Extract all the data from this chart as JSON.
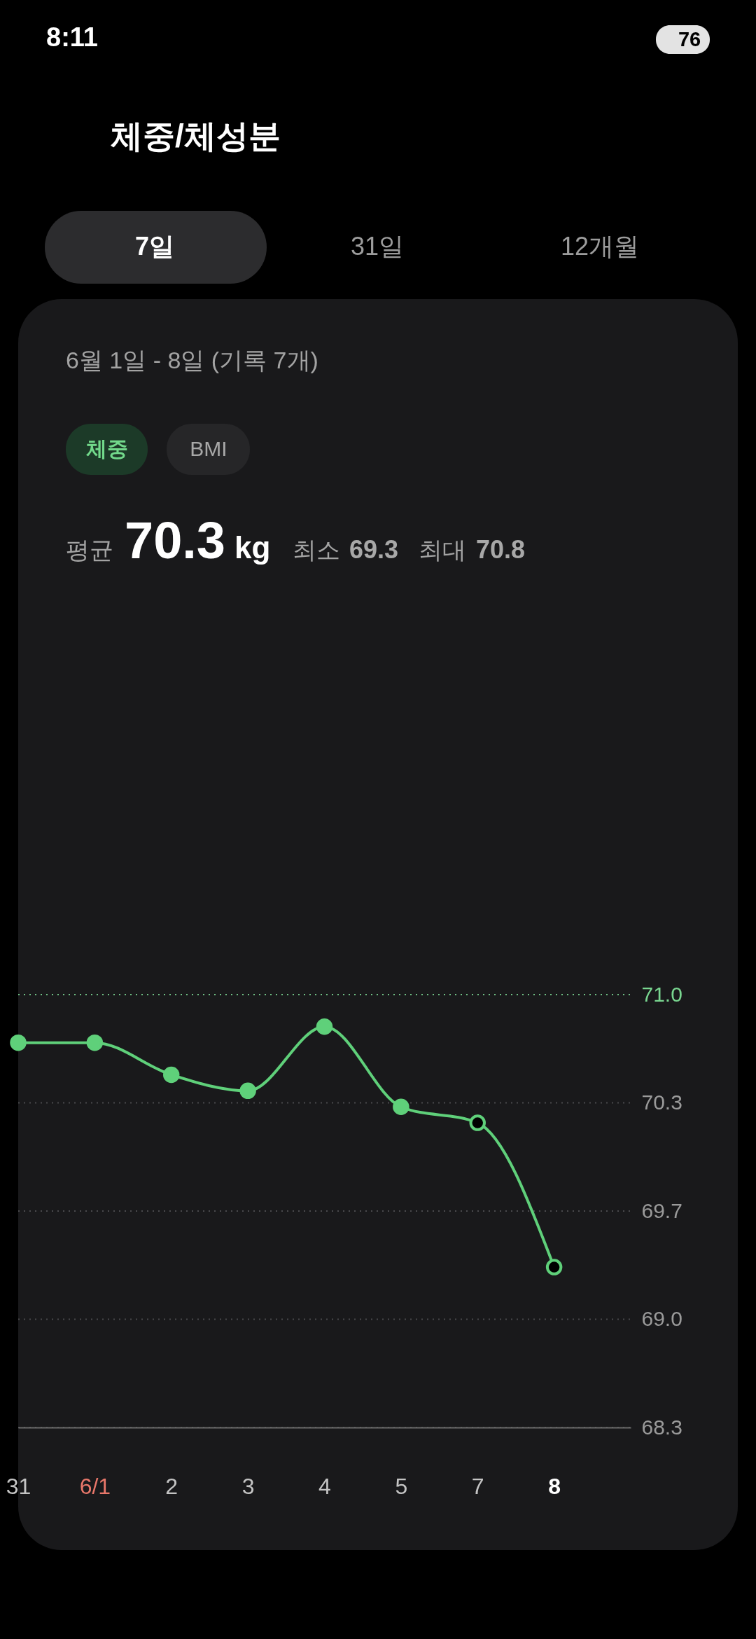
{
  "chart_data": {
    "type": "line",
    "title": "체중/체성분",
    "subtitle": "6월 1일 - 8일 (기록 7개)",
    "annotations": [
      "8:11",
      "76",
      "7일",
      "31일",
      "12개월",
      "체중",
      "BMI",
      "평균",
      "70.3",
      "kg",
      "최소",
      "69.3",
      "최대",
      "70.8"
    ],
    "categories": [
      "31",
      "6/1",
      "2",
      "3",
      "4",
      "5",
      "7",
      "8"
    ],
    "series": [
      {
        "color": "#5fd07a",
        "colors": [
          "#5fd07a",
          "#5fd07a",
          "#5fd07a",
          "#5fd07a",
          "#5fd07a",
          "#5fd07a",
          "#000000",
          "#000000"
        ],
        "values": [
          70.7,
          70.7,
          70.5,
          70.4,
          70.8,
          70.3,
          70.2,
          69.3
        ]
      }
    ],
    "ylim": [
      68.3,
      71.0
    ],
    "yticks": [
      68.3,
      {
        "value": 68.975,
        "label": "69.0"
      },
      {
        "value": 69.65,
        "label": "69.7"
      },
      {
        "value": 70.325,
        "label": "70.3"
      },
      {
        "value": 71.0,
        "label": "71.0"
      }
    ],
    "grid": "y",
    "marker": "circle",
    "line_style": "solid"
  }
}
